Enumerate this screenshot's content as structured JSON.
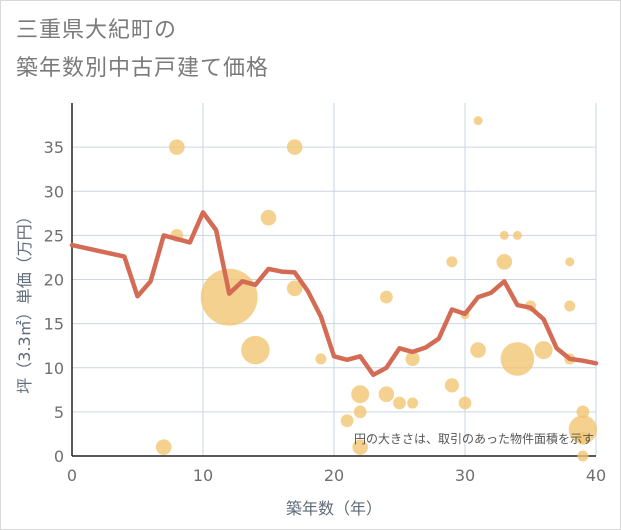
{
  "title_line1": "三重県大紀町の",
  "title_line2": "築年数別中古戸建て価格",
  "chart_data": {
    "type": "scatter",
    "title": "三重県大紀町の築年数別中古戸建て価格",
    "xlabel": "築年数（年）",
    "ylabel": "坪（3.3㎡）単価（万円）",
    "xlim": [
      0,
      40
    ],
    "ylim": [
      0,
      40
    ],
    "xticks": [
      0,
      10,
      20,
      30,
      40
    ],
    "yticks": [
      0,
      5,
      10,
      15,
      20,
      25,
      30,
      35
    ],
    "grid": true,
    "note": "円の大きさは、取引のあった物件面積を示す",
    "colors": {
      "bubble": "#f2c46f",
      "line": "#d46c55",
      "grid": "#c9d6e3",
      "axis_text": "#6f6f6f"
    },
    "bubbles": [
      {
        "x": 7,
        "y": 1,
        "size": 3
      },
      {
        "x": 8,
        "y": 35,
        "size": 3
      },
      {
        "x": 8,
        "y": 25,
        "size": 2
      },
      {
        "x": 12,
        "y": 18,
        "size": 40
      },
      {
        "x": 14,
        "y": 12,
        "size": 10
      },
      {
        "x": 15,
        "y": 27,
        "size": 3
      },
      {
        "x": 17,
        "y": 35,
        "size": 3
      },
      {
        "x": 17,
        "y": 19,
        "size": 3
      },
      {
        "x": 19,
        "y": 11,
        "size": 1.5
      },
      {
        "x": 21,
        "y": 4,
        "size": 2
      },
      {
        "x": 22,
        "y": 7,
        "size": 4
      },
      {
        "x": 22,
        "y": 5,
        "size": 2
      },
      {
        "x": 22,
        "y": 1,
        "size": 3
      },
      {
        "x": 24,
        "y": 18,
        "size": 2
      },
      {
        "x": 24,
        "y": 7,
        "size": 3
      },
      {
        "x": 25,
        "y": 6,
        "size": 2
      },
      {
        "x": 26,
        "y": 11,
        "size": 2.5
      },
      {
        "x": 26,
        "y": 6,
        "size": 1.5
      },
      {
        "x": 29,
        "y": 22,
        "size": 1.5
      },
      {
        "x": 29,
        "y": 8,
        "size": 2.5
      },
      {
        "x": 30,
        "y": 16,
        "size": 1
      },
      {
        "x": 30,
        "y": 6,
        "size": 2
      },
      {
        "x": 31,
        "y": 38,
        "size": 1
      },
      {
        "x": 31,
        "y": 12,
        "size": 3
      },
      {
        "x": 33,
        "y": 25,
        "size": 1
      },
      {
        "x": 33,
        "y": 22,
        "size": 3
      },
      {
        "x": 34,
        "y": 25,
        "size": 1
      },
      {
        "x": 34,
        "y": 11,
        "size": 14
      },
      {
        "x": 35,
        "y": 17,
        "size": 1.5
      },
      {
        "x": 36,
        "y": 12,
        "size": 4
      },
      {
        "x": 38,
        "y": 22,
        "size": 1
      },
      {
        "x": 38,
        "y": 17,
        "size": 1.5
      },
      {
        "x": 38,
        "y": 11,
        "size": 1.5
      },
      {
        "x": 39,
        "y": 5,
        "size": 2
      },
      {
        "x": 39,
        "y": 3,
        "size": 10
      },
      {
        "x": 39,
        "y": 2,
        "size": 2
      },
      {
        "x": 39,
        "y": 0,
        "size": 1.5
      }
    ],
    "trend": {
      "x": [
        0,
        4,
        5,
        6,
        7,
        8,
        9,
        10,
        11,
        12,
        13,
        14,
        15,
        16,
        17,
        18,
        19,
        20,
        21,
        22,
        23,
        24,
        25,
        26,
        27,
        28,
        29,
        30,
        31,
        32,
        33,
        34,
        35,
        36,
        37,
        38,
        39,
        40
      ],
      "y": [
        23.9,
        22.6,
        18.1,
        19.8,
        25.0,
        24.6,
        24.2,
        27.6,
        25.6,
        18.4,
        19.8,
        19.4,
        21.2,
        20.9,
        20.8,
        18.7,
        15.8,
        11.3,
        10.9,
        11.3,
        9.2,
        10.0,
        12.2,
        11.8,
        12.3,
        13.3,
        16.6,
        16.1,
        18.0,
        18.5,
        19.8,
        17.1,
        16.8,
        15.5,
        12.2,
        11.0,
        10.8,
        10.5
      ]
    }
  }
}
